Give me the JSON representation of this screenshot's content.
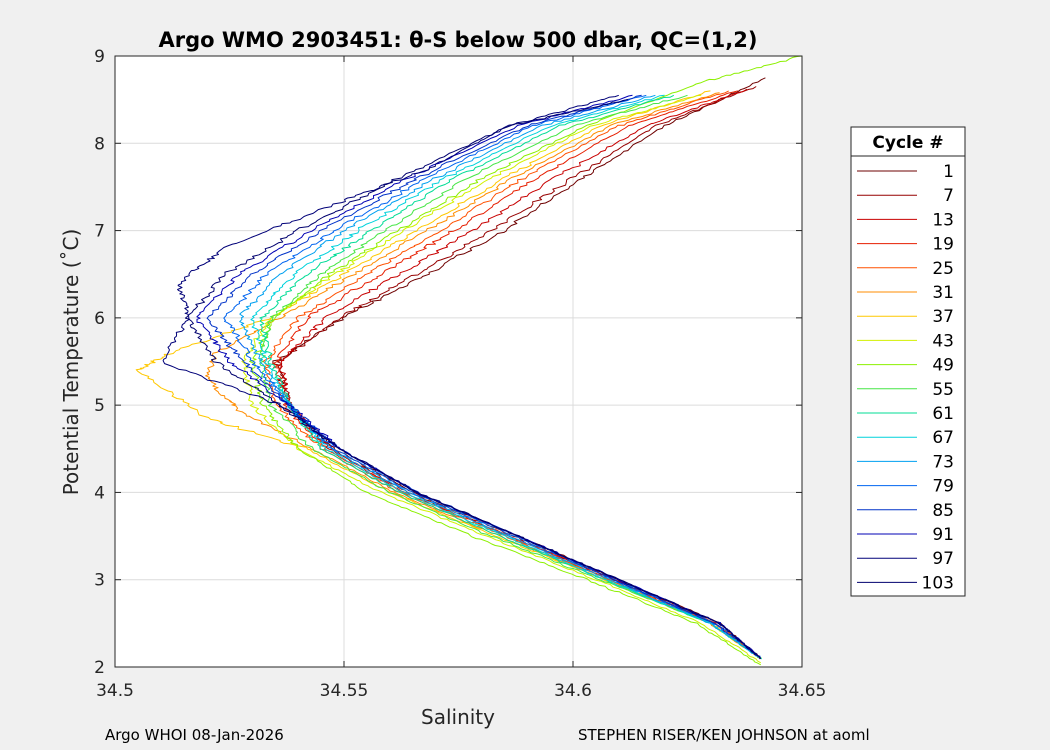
{
  "chart_data": {
    "type": "line",
    "title": "Argo WMO 2903451: θ-S below 500 dbar,  QC=(1,2)",
    "xlabel": "Salinity",
    "ylabel": "Potential Temperature (˚C)",
    "xlim": [
      34.5,
      34.65
    ],
    "ylim": [
      2,
      9
    ],
    "xticks": [
      "34.5",
      "34.55",
      "34.6",
      "34.65"
    ],
    "yticks": [
      "2",
      "3",
      "4",
      "5",
      "6",
      "7",
      "8",
      "9"
    ],
    "grid": true,
    "legend_title": "Cycle #",
    "legend_position": "right",
    "series": [
      {
        "name": "1",
        "color": "#6e0000",
        "points": [
          [
            34.641,
            2.1
          ],
          [
            34.632,
            2.5
          ],
          [
            34.61,
            3.0
          ],
          [
            34.588,
            3.5
          ],
          [
            34.565,
            4.0
          ],
          [
            34.548,
            4.5
          ],
          [
            34.538,
            5.0
          ],
          [
            34.535,
            5.5
          ],
          [
            34.55,
            6.0
          ],
          [
            34.568,
            6.5
          ],
          [
            34.585,
            7.0
          ],
          [
            34.602,
            7.6
          ],
          [
            34.62,
            8.2
          ],
          [
            34.642,
            8.75
          ]
        ]
      },
      {
        "name": "7",
        "color": "#960000",
        "points": [
          [
            34.641,
            2.1
          ],
          [
            34.631,
            2.5
          ],
          [
            34.609,
            3.0
          ],
          [
            34.587,
            3.5
          ],
          [
            34.564,
            4.0
          ],
          [
            34.547,
            4.5
          ],
          [
            34.538,
            5.0
          ],
          [
            34.536,
            5.5
          ],
          [
            34.549,
            6.0
          ],
          [
            34.566,
            6.5
          ],
          [
            34.582,
            7.0
          ],
          [
            34.6,
            7.6
          ],
          [
            34.618,
            8.2
          ],
          [
            34.64,
            8.65
          ]
        ]
      },
      {
        "name": "13",
        "color": "#c80000",
        "points": [
          [
            34.641,
            2.1
          ],
          [
            34.631,
            2.5
          ],
          [
            34.609,
            3.0
          ],
          [
            34.586,
            3.5
          ],
          [
            34.563,
            4.0
          ],
          [
            34.547,
            4.5
          ],
          [
            34.538,
            5.0
          ],
          [
            34.536,
            5.5
          ],
          [
            34.546,
            6.0
          ],
          [
            34.562,
            6.5
          ],
          [
            34.578,
            7.0
          ],
          [
            34.596,
            7.6
          ],
          [
            34.616,
            8.2
          ],
          [
            34.638,
            8.62
          ]
        ]
      },
      {
        "name": "19",
        "color": "#e61e00",
        "points": [
          [
            34.641,
            2.1
          ],
          [
            34.631,
            2.5
          ],
          [
            34.608,
            3.0
          ],
          [
            34.586,
            3.5
          ],
          [
            34.563,
            4.0
          ],
          [
            34.546,
            4.5
          ],
          [
            34.537,
            5.0
          ],
          [
            34.535,
            5.5
          ],
          [
            34.542,
            6.0
          ],
          [
            34.558,
            6.5
          ],
          [
            34.574,
            7.0
          ],
          [
            34.592,
            7.6
          ],
          [
            34.612,
            8.2
          ],
          [
            34.636,
            8.6
          ]
        ]
      },
      {
        "name": "25",
        "color": "#ff5000",
        "points": [
          [
            34.641,
            2.1
          ],
          [
            34.631,
            2.5
          ],
          [
            34.608,
            3.0
          ],
          [
            34.585,
            3.5
          ],
          [
            34.562,
            4.0
          ],
          [
            34.545,
            4.5
          ],
          [
            34.535,
            5.0
          ],
          [
            34.533,
            5.5
          ],
          [
            34.54,
            6.0
          ],
          [
            34.555,
            6.5
          ],
          [
            34.571,
            7.0
          ],
          [
            34.589,
            7.6
          ],
          [
            34.61,
            8.2
          ],
          [
            34.634,
            8.6
          ]
        ]
      },
      {
        "name": "31",
        "color": "#ff8c00",
        "points": [
          [
            34.641,
            2.1
          ],
          [
            34.63,
            2.5
          ],
          [
            34.607,
            3.0
          ],
          [
            34.584,
            3.5
          ],
          [
            34.561,
            4.0
          ],
          [
            34.543,
            4.5
          ],
          [
            34.528,
            4.9
          ],
          [
            34.52,
            5.3
          ],
          [
            34.522,
            5.6
          ],
          [
            34.536,
            6.0
          ],
          [
            34.552,
            6.5
          ],
          [
            34.568,
            7.0
          ],
          [
            34.587,
            7.6
          ],
          [
            34.608,
            8.2
          ],
          [
            34.632,
            8.58
          ]
        ]
      },
      {
        "name": "37",
        "color": "#ffc800",
        "points": [
          [
            34.641,
            2.1
          ],
          [
            34.63,
            2.5
          ],
          [
            34.607,
            3.0
          ],
          [
            34.583,
            3.5
          ],
          [
            34.56,
            4.0
          ],
          [
            34.542,
            4.5
          ],
          [
            34.52,
            4.85
          ],
          [
            34.505,
            5.4
          ],
          [
            34.512,
            5.6
          ],
          [
            34.534,
            6.0
          ],
          [
            34.55,
            6.5
          ],
          [
            34.566,
            7.0
          ],
          [
            34.585,
            7.6
          ],
          [
            34.606,
            8.2
          ],
          [
            34.63,
            8.6
          ]
        ]
      },
      {
        "name": "43",
        "color": "#d2f000",
        "points": [
          [
            34.641,
            2.05
          ],
          [
            34.628,
            2.5
          ],
          [
            34.605,
            3.0
          ],
          [
            34.581,
            3.5
          ],
          [
            34.558,
            4.0
          ],
          [
            34.54,
            4.5
          ],
          [
            34.53,
            5.0
          ],
          [
            34.528,
            5.5
          ],
          [
            34.534,
            6.0
          ],
          [
            34.548,
            6.5
          ],
          [
            34.563,
            7.0
          ],
          [
            34.582,
            7.6
          ],
          [
            34.604,
            8.2
          ],
          [
            34.628,
            8.55
          ]
        ]
      },
      {
        "name": "49",
        "color": "#8cf000",
        "points": [
          [
            34.641,
            2.02
          ],
          [
            34.627,
            2.5
          ],
          [
            34.603,
            3.0
          ],
          [
            34.578,
            3.5
          ],
          [
            34.555,
            4.0
          ],
          [
            34.54,
            4.5
          ],
          [
            34.532,
            5.0
          ],
          [
            34.53,
            5.5
          ],
          [
            34.535,
            6.0
          ],
          [
            34.547,
            6.5
          ],
          [
            34.562,
            7.0
          ],
          [
            34.58,
            7.6
          ],
          [
            34.603,
            8.2
          ],
          [
            34.628,
            8.7
          ],
          [
            34.65,
            9.0
          ]
        ]
      },
      {
        "name": "55",
        "color": "#46e646",
        "points": [
          [
            34.641,
            2.1
          ],
          [
            34.63,
            2.5
          ],
          [
            34.606,
            3.0
          ],
          [
            34.582,
            3.5
          ],
          [
            34.56,
            4.0
          ],
          [
            34.543,
            4.5
          ],
          [
            34.534,
            5.0
          ],
          [
            34.532,
            5.5
          ],
          [
            34.534,
            6.0
          ],
          [
            34.545,
            6.5
          ],
          [
            34.559,
            7.0
          ],
          [
            34.577,
            7.6
          ],
          [
            34.6,
            8.2
          ],
          [
            34.625,
            8.55
          ]
        ]
      },
      {
        "name": "61",
        "color": "#00dc96",
        "points": [
          [
            34.641,
            2.1
          ],
          [
            34.63,
            2.5
          ],
          [
            34.607,
            3.0
          ],
          [
            34.584,
            3.5
          ],
          [
            34.562,
            4.0
          ],
          [
            34.545,
            4.5
          ],
          [
            34.538,
            5.0
          ],
          [
            34.534,
            5.5
          ],
          [
            34.532,
            6.0
          ],
          [
            34.542,
            6.5
          ],
          [
            34.556,
            7.0
          ],
          [
            34.574,
            7.6
          ],
          [
            34.597,
            8.2
          ],
          [
            34.622,
            8.55
          ]
        ]
      },
      {
        "name": "67",
        "color": "#00d2dc",
        "points": [
          [
            34.641,
            2.1
          ],
          [
            34.63,
            2.5
          ],
          [
            34.607,
            3.0
          ],
          [
            34.585,
            3.5
          ],
          [
            34.563,
            4.0
          ],
          [
            34.546,
            4.5
          ],
          [
            34.538,
            5.0
          ],
          [
            34.533,
            5.5
          ],
          [
            34.53,
            6.0
          ],
          [
            34.539,
            6.5
          ],
          [
            34.553,
            7.0
          ],
          [
            34.572,
            7.6
          ],
          [
            34.595,
            8.2
          ],
          [
            34.62,
            8.55
          ]
        ]
      },
      {
        "name": "73",
        "color": "#00a0f0",
        "points": [
          [
            34.641,
            2.1
          ],
          [
            34.63,
            2.5
          ],
          [
            34.608,
            3.0
          ],
          [
            34.586,
            3.5
          ],
          [
            34.564,
            4.0
          ],
          [
            34.547,
            4.5
          ],
          [
            34.538,
            5.0
          ],
          [
            34.532,
            5.5
          ],
          [
            34.527,
            6.0
          ],
          [
            34.536,
            6.5
          ],
          [
            34.55,
            7.0
          ],
          [
            34.57,
            7.6
          ],
          [
            34.593,
            8.2
          ],
          [
            34.618,
            8.55
          ]
        ]
      },
      {
        "name": "79",
        "color": "#0064f0",
        "points": [
          [
            34.641,
            2.1
          ],
          [
            34.631,
            2.5
          ],
          [
            34.609,
            3.0
          ],
          [
            34.587,
            3.5
          ],
          [
            34.565,
            4.0
          ],
          [
            34.548,
            4.5
          ],
          [
            34.538,
            5.0
          ],
          [
            34.53,
            5.5
          ],
          [
            34.524,
            6.0
          ],
          [
            34.533,
            6.5
          ],
          [
            34.548,
            7.0
          ],
          [
            34.568,
            7.6
          ],
          [
            34.591,
            8.2
          ],
          [
            34.616,
            8.55
          ]
        ]
      },
      {
        "name": "85",
        "color": "#0032c8",
        "points": [
          [
            34.641,
            2.1
          ],
          [
            34.631,
            2.5
          ],
          [
            34.609,
            3.0
          ],
          [
            34.588,
            3.5
          ],
          [
            34.566,
            4.0
          ],
          [
            34.549,
            4.5
          ],
          [
            34.538,
            5.0
          ],
          [
            34.528,
            5.5
          ],
          [
            34.52,
            6.0
          ],
          [
            34.53,
            6.5
          ],
          [
            34.545,
            7.0
          ],
          [
            34.566,
            7.6
          ],
          [
            34.59,
            8.2
          ],
          [
            34.615,
            8.55
          ]
        ]
      },
      {
        "name": "91",
        "color": "#0000b4",
        "points": [
          [
            34.641,
            2.1
          ],
          [
            34.632,
            2.5
          ],
          [
            34.61,
            3.0
          ],
          [
            34.588,
            3.5
          ],
          [
            34.566,
            4.0
          ],
          [
            34.549,
            4.5
          ],
          [
            34.538,
            5.0
          ],
          [
            34.525,
            5.5
          ],
          [
            34.518,
            6.0
          ],
          [
            34.527,
            6.5
          ],
          [
            34.543,
            7.0
          ],
          [
            34.564,
            7.6
          ],
          [
            34.588,
            8.2
          ],
          [
            34.613,
            8.55
          ]
        ]
      },
      {
        "name": "97",
        "color": "#000078",
        "points": [
          [
            34.641,
            2.1
          ],
          [
            34.632,
            2.5
          ],
          [
            34.61,
            3.0
          ],
          [
            34.588,
            3.5
          ],
          [
            34.566,
            4.0
          ],
          [
            34.549,
            4.5
          ],
          [
            34.536,
            5.0
          ],
          [
            34.51,
            5.5
          ],
          [
            34.516,
            6.0
          ],
          [
            34.514,
            6.4
          ],
          [
            34.524,
            6.8
          ],
          [
            34.548,
            7.3
          ],
          [
            34.568,
            7.7
          ],
          [
            34.586,
            8.2
          ],
          [
            34.61,
            8.55
          ]
        ]
      },
      {
        "name": "103",
        "color": "#00006e",
        "points": [
          [
            34.641,
            2.1
          ],
          [
            34.632,
            2.5
          ],
          [
            34.61,
            3.0
          ],
          [
            34.588,
            3.5
          ],
          [
            34.566,
            4.0
          ],
          [
            34.549,
            4.5
          ],
          [
            34.536,
            5.0
          ],
          [
            34.522,
            5.5
          ],
          [
            34.516,
            6.0
          ],
          [
            34.524,
            6.5
          ],
          [
            34.54,
            7.0
          ],
          [
            34.562,
            7.6
          ],
          [
            34.586,
            8.2
          ],
          [
            34.612,
            8.5
          ]
        ]
      }
    ]
  },
  "footer": {
    "left": "Argo WHOI 08-Jan-2026",
    "right": "STEPHEN RISER/KEN JOHNSON at aoml"
  }
}
